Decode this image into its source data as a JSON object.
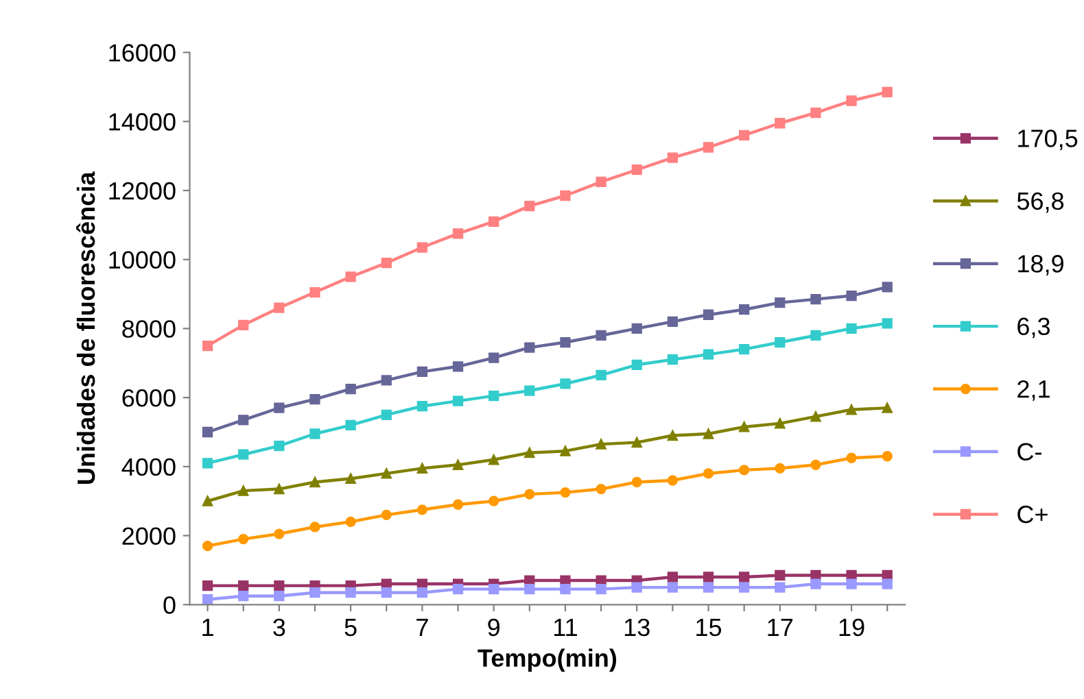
{
  "chart_data": {
    "type": "line",
    "xlabel": "Tempo(min)",
    "ylabel": "Unidades de fluorescência",
    "x": [
      1,
      2,
      3,
      4,
      5,
      6,
      7,
      8,
      9,
      10,
      11,
      12,
      13,
      14,
      15,
      16,
      17,
      18,
      19,
      20
    ],
    "xlim": [
      0.5,
      20.5
    ],
    "xticks": [
      1,
      {
        "value": 2,
        "label": null
      },
      3,
      {
        "value": 4,
        "label": null
      },
      5,
      {
        "value": 6,
        "label": null
      },
      7,
      {
        "value": 8,
        "label": null
      },
      9,
      {
        "value": 10,
        "label": null
      },
      11,
      {
        "value": 12,
        "label": null
      },
      13,
      {
        "value": 14,
        "label": null
      },
      15,
      {
        "value": 16,
        "label": null
      },
      17,
      {
        "value": 18,
        "label": null
      },
      19,
      {
        "value": 20,
        "label": null
      }
    ],
    "ylim": [
      0,
      16000
    ],
    "yticks": [
      0,
      2000,
      4000,
      6000,
      8000,
      10000,
      12000,
      14000,
      16000
    ],
    "grid": false,
    "legend": "right",
    "series": [
      {
        "name": "170,5",
        "color": "#993366",
        "marker": "square",
        "values": [
          550,
          550,
          550,
          550,
          550,
          600,
          600,
          600,
          600,
          700,
          700,
          700,
          700,
          800,
          800,
          800,
          850,
          850,
          850,
          850
        ]
      },
      {
        "name": "56,8",
        "color": "#808000",
        "marker": "triangle",
        "values": [
          3000,
          3300,
          3350,
          3550,
          3650,
          3800,
          3950,
          4050,
          4200,
          4400,
          4450,
          4650,
          4700,
          4900,
          4950,
          5150,
          5250,
          5450,
          5650,
          5700
        ]
      },
      {
        "name": "18,9",
        "color": "#666699",
        "marker": "square",
        "values": [
          5000,
          5350,
          5700,
          5950,
          6250,
          6500,
          6750,
          6900,
          7150,
          7450,
          7600,
          7800,
          8000,
          8200,
          8400,
          8550,
          8750,
          8850,
          8950,
          9200
        ]
      },
      {
        "name": "6,3",
        "color": "#33cccc",
        "marker": "square",
        "values": [
          4100,
          4350,
          4600,
          4950,
          5200,
          5500,
          5750,
          5900,
          6050,
          6200,
          6400,
          6650,
          6950,
          7100,
          7250,
          7400,
          7600,
          7800,
          8000,
          8150
        ]
      },
      {
        "name": "2,1",
        "color": "#ff9900",
        "marker": "circle",
        "values": [
          1700,
          1900,
          2050,
          2250,
          2400,
          2600,
          2750,
          2900,
          3000,
          3200,
          3250,
          3350,
          3550,
          3600,
          3800,
          3900,
          3950,
          4050,
          4250,
          4300
        ]
      },
      {
        "name": "C-",
        "color": "#9999ff",
        "marker": "square",
        "values": [
          150,
          250,
          250,
          350,
          350,
          350,
          350,
          450,
          450,
          450,
          450,
          450,
          500,
          500,
          500,
          500,
          500,
          600,
          600,
          600
        ]
      },
      {
        "name": "C+",
        "color": "#ff8080",
        "marker": "square",
        "values": [
          7500,
          8100,
          8600,
          9050,
          9500,
          9900,
          10350,
          10750,
          11100,
          11550,
          11850,
          12250,
          12600,
          12950,
          13250,
          13600,
          13950,
          14250,
          14600,
          14850
        ]
      }
    ]
  }
}
